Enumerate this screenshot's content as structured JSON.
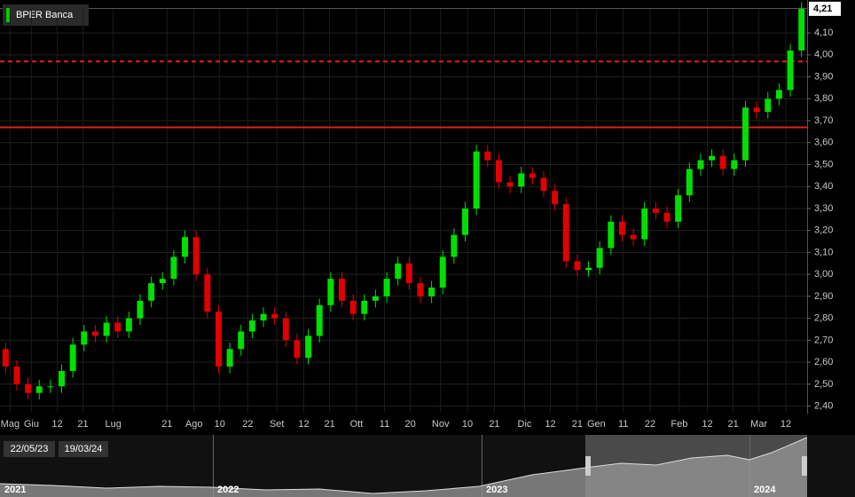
{
  "chart_data": {
    "type": "candlestick",
    "legend": "BPER Banca",
    "legend_color": "#00d000",
    "up_color": "#00e000",
    "down_color": "#e00000",
    "grid": true,
    "xlim": [
      0,
      72
    ],
    "ylim": [
      2.37,
      4.25
    ],
    "xticks": [
      {
        "value": 0.9,
        "label": "Mag"
      },
      {
        "value": 2.8,
        "label": "Giu"
      },
      {
        "value": 5.1,
        "label": "12"
      },
      {
        "value": 7.4,
        "label": "21"
      },
      {
        "value": 10.1,
        "label": "Lug"
      },
      {
        "value": 14.9,
        "label": "21"
      },
      {
        "value": 17.3,
        "label": "Ago"
      },
      {
        "value": 19.6,
        "label": "10"
      },
      {
        "value": 22.1,
        "label": "22"
      },
      {
        "value": 24.7,
        "label": "Set"
      },
      {
        "value": 27.1,
        "label": "12"
      },
      {
        "value": 29.4,
        "label": "21"
      },
      {
        "value": 31.8,
        "label": "Ott"
      },
      {
        "value": 34.3,
        "label": "11"
      },
      {
        "value": 36.6,
        "label": "20"
      },
      {
        "value": 39.3,
        "label": "Nov"
      },
      {
        "value": 41.7,
        "label": "10"
      },
      {
        "value": 44.1,
        "label": "21"
      },
      {
        "value": 46.8,
        "label": "Dic"
      },
      {
        "value": 49.1,
        "label": "12"
      },
      {
        "value": 51.5,
        "label": "21"
      },
      {
        "value": 53.2,
        "label": "Gen"
      },
      {
        "value": 55.6,
        "label": "11"
      },
      {
        "value": 58.0,
        "label": "22"
      },
      {
        "value": 60.6,
        "label": "Feb"
      },
      {
        "value": 63.1,
        "label": "12"
      },
      {
        "value": 65.4,
        "label": "21"
      },
      {
        "value": 67.7,
        "label": "Mar"
      },
      {
        "value": 70.1,
        "label": "12"
      }
    ],
    "yticks": [
      {
        "value": 2.4,
        "label": "2,40"
      },
      {
        "value": 2.5,
        "label": "2,50"
      },
      {
        "value": 2.6,
        "label": "2,60"
      },
      {
        "value": 2.7,
        "label": "2,70"
      },
      {
        "value": 2.8,
        "label": "2,80"
      },
      {
        "value": 2.9,
        "label": "2,90"
      },
      {
        "value": 3.0,
        "label": "3,00"
      },
      {
        "value": 3.1,
        "label": "3,10"
      },
      {
        "value": 3.2,
        "label": "3,20"
      },
      {
        "value": 3.3,
        "label": "3,30"
      },
      {
        "value": 3.4,
        "label": "3,40"
      },
      {
        "value": 3.5,
        "label": "3,50"
      },
      {
        "value": 3.6,
        "label": "3,60"
      },
      {
        "value": 3.7,
        "label": "3,70"
      },
      {
        "value": 3.8,
        "label": "3,80"
      },
      {
        "value": 3.9,
        "label": "3,90"
      },
      {
        "value": 4.0,
        "label": "4,00"
      },
      {
        "value": 4.1,
        "label": "4,10"
      }
    ],
    "last_price": {
      "value": 4.21,
      "label": "4,21"
    },
    "hlines": [
      {
        "value": 3.97,
        "style": "dashed",
        "color": "#e02020"
      },
      {
        "value": 3.67,
        "style": "solid",
        "color": "#e02020"
      }
    ],
    "open": [
      2.66,
      2.58,
      2.5,
      2.46,
      2.49,
      2.49,
      2.56,
      2.68,
      2.74,
      2.72,
      2.78,
      2.74,
      2.8,
      2.88,
      2.96,
      2.98,
      3.08,
      3.17,
      3.0,
      2.83,
      2.58,
      2.66,
      2.74,
      2.79,
      2.82,
      2.8,
      2.7,
      2.62,
      2.72,
      2.86,
      2.98,
      2.88,
      2.82,
      2.88,
      2.9,
      2.98,
      3.05,
      2.96,
      2.9,
      2.94,
      3.08,
      3.18,
      3.3,
      3.56,
      3.52,
      3.42,
      3.4,
      3.46,
      3.44,
      3.38,
      3.32,
      3.06,
      3.02,
      3.03,
      3.12,
      3.24,
      3.18,
      3.16,
      3.3,
      3.28,
      3.24,
      3.36,
      3.48,
      3.52,
      3.54,
      3.48,
      3.52,
      3.76,
      3.74,
      3.8,
      3.84,
      4.02
    ],
    "high": [
      2.69,
      2.61,
      2.53,
      2.52,
      2.52,
      2.59,
      2.71,
      2.77,
      2.77,
      2.81,
      2.81,
      2.83,
      2.91,
      2.99,
      3.01,
      3.11,
      3.2,
      3.2,
      3.03,
      2.86,
      2.69,
      2.77,
      2.82,
      2.85,
      2.85,
      2.83,
      2.73,
      2.75,
      2.89,
      3.01,
      3.01,
      2.91,
      2.91,
      2.93,
      3.01,
      3.08,
      3.08,
      2.99,
      2.97,
      3.11,
      3.21,
      3.33,
      3.59,
      3.59,
      3.55,
      3.45,
      3.49,
      3.49,
      3.47,
      3.41,
      3.35,
      3.09,
      3.06,
      3.15,
      3.27,
      3.27,
      3.21,
      3.33,
      3.33,
      3.31,
      3.39,
      3.51,
      3.55,
      3.57,
      3.57,
      3.55,
      3.79,
      3.79,
      3.83,
      3.87,
      4.05,
      4.24
    ],
    "low": [
      2.55,
      2.47,
      2.43,
      2.43,
      2.46,
      2.46,
      2.53,
      2.65,
      2.69,
      2.69,
      2.71,
      2.71,
      2.77,
      2.85,
      2.93,
      2.95,
      3.05,
      2.97,
      2.8,
      2.55,
      2.55,
      2.63,
      2.71,
      2.76,
      2.77,
      2.67,
      2.59,
      2.59,
      2.69,
      2.83,
      2.85,
      2.79,
      2.79,
      2.85,
      2.87,
      2.95,
      2.93,
      2.87,
      2.87,
      2.91,
      3.05,
      3.15,
      3.27,
      3.49,
      3.39,
      3.37,
      3.37,
      3.41,
      3.35,
      3.29,
      3.03,
      2.99,
      2.99,
      3.0,
      3.09,
      3.15,
      3.13,
      3.13,
      3.25,
      3.21,
      3.21,
      3.33,
      3.45,
      3.49,
      3.45,
      3.45,
      3.49,
      3.71,
      3.71,
      3.77,
      3.81,
      3.99
    ],
    "close": [
      2.58,
      2.5,
      2.46,
      2.49,
      2.49,
      2.56,
      2.68,
      2.74,
      2.72,
      2.78,
      2.74,
      2.8,
      2.88,
      2.96,
      2.98,
      3.08,
      3.17,
      3.0,
      2.83,
      2.58,
      2.66,
      2.74,
      2.79,
      2.82,
      2.8,
      2.7,
      2.62,
      2.72,
      2.86,
      2.98,
      2.88,
      2.82,
      2.88,
      2.9,
      2.98,
      3.05,
      2.96,
      2.9,
      2.94,
      3.08,
      3.18,
      3.3,
      3.56,
      3.52,
      3.42,
      3.4,
      3.46,
      3.44,
      3.38,
      3.32,
      3.06,
      3.02,
      3.03,
      3.12,
      3.24,
      3.18,
      3.16,
      3.3,
      3.28,
      3.24,
      3.36,
      3.48,
      3.52,
      3.54,
      3.48,
      3.52,
      3.76,
      3.74,
      3.8,
      3.84,
      4.02,
      4.21
    ]
  },
  "navigator": {
    "start_date": "22/05/23",
    "end_date": "19/03/24",
    "years": [
      "2021",
      "2022",
      "2023",
      "2024"
    ]
  }
}
